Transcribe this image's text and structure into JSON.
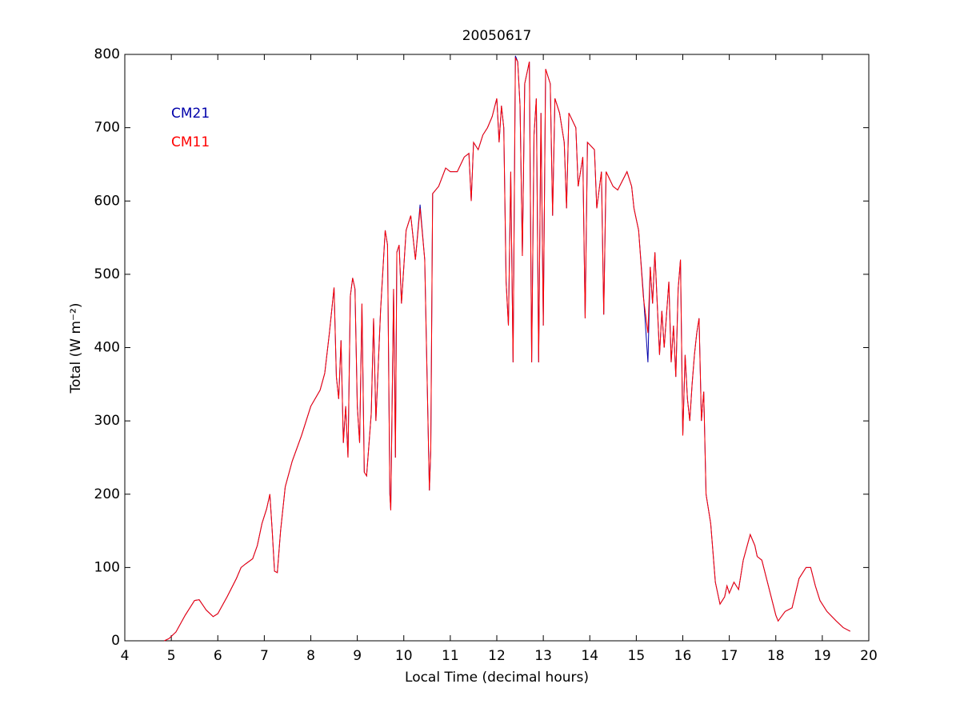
{
  "chart_data": {
    "type": "line",
    "title": "20050617",
    "xlabel": "Local Time (decimal hours)",
    "ylabel": "Total (W m⁻²)",
    "xlim": [
      4,
      20
    ],
    "xticks": [
      4,
      5,
      6,
      7,
      8,
      9,
      10,
      11,
      12,
      13,
      14,
      15,
      16,
      17,
      18,
      19,
      20
    ],
    "ylim": [
      0,
      800
    ],
    "yticks": [
      0,
      100,
      200,
      300,
      400,
      500,
      600,
      700,
      800
    ],
    "legend": "upper left",
    "grid": false,
    "x": [
      4.85,
      4.95,
      5.1,
      5.3,
      5.5,
      5.6,
      5.75,
      5.9,
      6.0,
      6.2,
      6.4,
      6.5,
      6.6,
      6.75,
      6.85,
      6.95,
      7.05,
      7.12,
      7.17,
      7.22,
      7.28,
      7.35,
      7.45,
      7.6,
      7.8,
      8.0,
      8.2,
      8.3,
      8.4,
      8.5,
      8.55,
      8.6,
      8.65,
      8.7,
      8.75,
      8.8,
      8.85,
      8.9,
      8.95,
      9.0,
      9.05,
      9.1,
      9.15,
      9.2,
      9.3,
      9.35,
      9.4,
      9.5,
      9.6,
      9.65,
      9.7,
      9.72,
      9.78,
      9.82,
      9.85,
      9.9,
      9.95,
      10.05,
      10.15,
      10.25,
      10.35,
      10.45,
      10.55,
      10.58,
      10.62,
      10.75,
      10.9,
      11.0,
      11.15,
      11.3,
      11.4,
      11.45,
      11.5,
      11.6,
      11.7,
      11.8,
      11.9,
      12.0,
      12.05,
      12.1,
      12.15,
      12.2,
      12.25,
      12.3,
      12.35,
      12.4,
      12.45,
      12.5,
      12.55,
      12.6,
      12.7,
      12.75,
      12.8,
      12.85,
      12.9,
      12.95,
      13.0,
      13.05,
      13.15,
      13.2,
      13.25,
      13.35,
      13.45,
      13.5,
      13.55,
      13.7,
      13.75,
      13.85,
      13.9,
      13.95,
      14.1,
      14.15,
      14.25,
      14.3,
      14.35,
      14.5,
      14.6,
      14.8,
      14.9,
      14.95,
      15.05,
      15.15,
      15.25,
      15.3,
      15.35,
      15.4,
      15.5,
      15.55,
      15.6,
      15.7,
      15.75,
      15.8,
      15.85,
      15.9,
      15.95,
      16.0,
      16.05,
      16.1,
      16.15,
      16.2,
      16.25,
      16.3,
      16.35,
      16.4,
      16.45,
      16.5,
      16.6,
      16.7,
      16.8,
      16.9,
      16.95,
      17.0,
      17.1,
      17.2,
      17.3,
      17.45,
      17.55,
      17.6,
      17.7,
      17.8,
      17.9,
      18.0,
      18.05,
      18.2,
      18.35,
      18.5,
      18.65,
      18.75,
      18.85,
      18.95,
      19.1,
      19.3,
      19.45,
      19.6
    ],
    "series": [
      {
        "name": "CM21",
        "color": "#0000aa",
        "values": [
          0,
          3,
          12,
          35,
          55,
          56,
          42,
          33,
          37,
          60,
          85,
          100,
          105,
          112,
          130,
          160,
          180,
          200,
          150,
          95,
          93,
          150,
          210,
          245,
          280,
          320,
          342,
          365,
          420,
          482,
          360,
          330,
          410,
          270,
          320,
          250,
          470,
          495,
          480,
          320,
          270,
          460,
          230,
          225,
          310,
          440,
          300,
          450,
          560,
          540,
          200,
          178,
          480,
          250,
          530,
          540,
          460,
          560,
          580,
          520,
          595,
          520,
          205,
          260,
          610,
          620,
          645,
          640,
          640,
          660,
          665,
          600,
          680,
          670,
          690,
          700,
          715,
          740,
          680,
          730,
          700,
          490,
          430,
          640,
          380,
          798,
          790,
          730,
          525,
          760,
          790,
          380,
          690,
          740,
          380,
          720,
          430,
          780,
          760,
          580,
          740,
          720,
          680,
          590,
          720,
          700,
          620,
          660,
          440,
          680,
          670,
          590,
          640,
          445,
          640,
          620,
          615,
          640,
          620,
          590,
          560,
          475,
          380,
          510,
          460,
          530,
          390,
          450,
          400,
          490,
          380,
          430,
          360,
          480,
          520,
          280,
          390,
          330,
          300,
          350,
          390,
          420,
          440,
          300,
          340,
          200,
          160,
          80,
          50,
          60,
          75,
          65,
          80,
          70,
          110,
          145,
          130,
          115,
          110,
          85,
          60,
          35,
          27,
          40,
          45,
          85,
          100,
          100,
          75,
          55,
          40,
          27,
          18,
          13
        ]
      },
      {
        "name": "CM11",
        "color": "#ff0000",
        "values": [
          0,
          3,
          12,
          35,
          55,
          56,
          42,
          33,
          37,
          60,
          85,
          100,
          105,
          112,
          130,
          160,
          180,
          200,
          150,
          95,
          93,
          150,
          210,
          245,
          280,
          320,
          342,
          365,
          420,
          482,
          360,
          330,
          410,
          270,
          320,
          250,
          470,
          495,
          480,
          320,
          270,
          460,
          230,
          225,
          310,
          440,
          300,
          450,
          560,
          540,
          200,
          178,
          480,
          250,
          530,
          540,
          460,
          560,
          580,
          520,
          590,
          520,
          205,
          260,
          610,
          620,
          645,
          640,
          640,
          660,
          665,
          600,
          680,
          670,
          690,
          700,
          715,
          740,
          680,
          730,
          700,
          490,
          430,
          640,
          380,
          795,
          790,
          730,
          525,
          760,
          790,
          380,
          690,
          740,
          380,
          720,
          430,
          780,
          760,
          580,
          740,
          720,
          680,
          590,
          720,
          700,
          620,
          660,
          440,
          680,
          670,
          590,
          640,
          445,
          640,
          620,
          615,
          640,
          620,
          590,
          560,
          470,
          420,
          510,
          460,
          530,
          390,
          450,
          400,
          490,
          380,
          430,
          360,
          480,
          520,
          280,
          390,
          330,
          300,
          350,
          390,
          420,
          440,
          300,
          340,
          200,
          160,
          80,
          50,
          60,
          75,
          65,
          80,
          70,
          110,
          145,
          130,
          115,
          110,
          85,
          60,
          35,
          27,
          40,
          45,
          85,
          100,
          100,
          75,
          55,
          40,
          27,
          18,
          13
        ]
      }
    ]
  }
}
